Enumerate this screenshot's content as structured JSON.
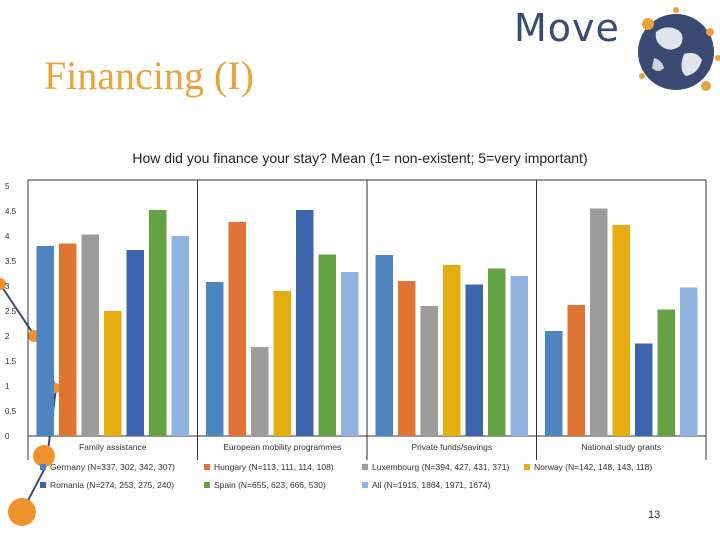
{
  "slide": {
    "title": "Financing (I)",
    "page_number": "13"
  },
  "logo": {
    "text": "Move",
    "icon": "globe-icon"
  },
  "colors": {
    "accent": "#e8a33d",
    "decoration": "#f0922b",
    "line": "#3b4a72"
  },
  "chart_data": {
    "type": "bar",
    "title": "How did you  finance your stay? Mean (1= non-existent; 5=very important)",
    "categories": [
      "Family assistance",
      "European mobility programmes",
      "Private funds/savings",
      "National study grants"
    ],
    "ylim": [
      0,
      5
    ],
    "yticks": [
      "0",
      "0.5",
      "1",
      "1.5",
      "2",
      "2.5",
      "3",
      "3.5",
      "4",
      "4.5",
      "5"
    ],
    "grid": false,
    "legend_position": "bottom",
    "series": [
      {
        "name": "Germany (N=337, 302, 342, 307)",
        "color": "#4e85c0",
        "values": [
          3.8,
          3.08,
          3.62,
          2.1
        ]
      },
      {
        "name": "Hungary (N=113, 111, 114, 108)",
        "color": "#de7532",
        "values": [
          3.85,
          4.28,
          3.1,
          2.62
        ]
      },
      {
        "name": "Luxembourg (N=394, 427, 431, 371)",
        "color": "#9b9b9b",
        "values": [
          4.03,
          1.78,
          2.6,
          4.55
        ]
      },
      {
        "name": "Norway (N=142, 148, 143, 118)",
        "color": "#e5ad0f",
        "values": [
          2.5,
          2.9,
          3.42,
          4.22
        ]
      },
      {
        "name": "Romania (N=274, 253, 275, 240)",
        "color": "#3c65ae",
        "values": [
          3.72,
          4.52,
          3.03,
          1.85
        ]
      },
      {
        "name": "Spain (N=655, 623, 666, 530)",
        "color": "#64a244",
        "values": [
          4.52,
          3.63,
          3.35,
          2.53
        ]
      },
      {
        "name": "All (N=1915, 1864, 1971, 1674)",
        "color": "#8fb2de",
        "values": [
          4.0,
          3.28,
          3.2,
          2.97
        ]
      }
    ]
  }
}
